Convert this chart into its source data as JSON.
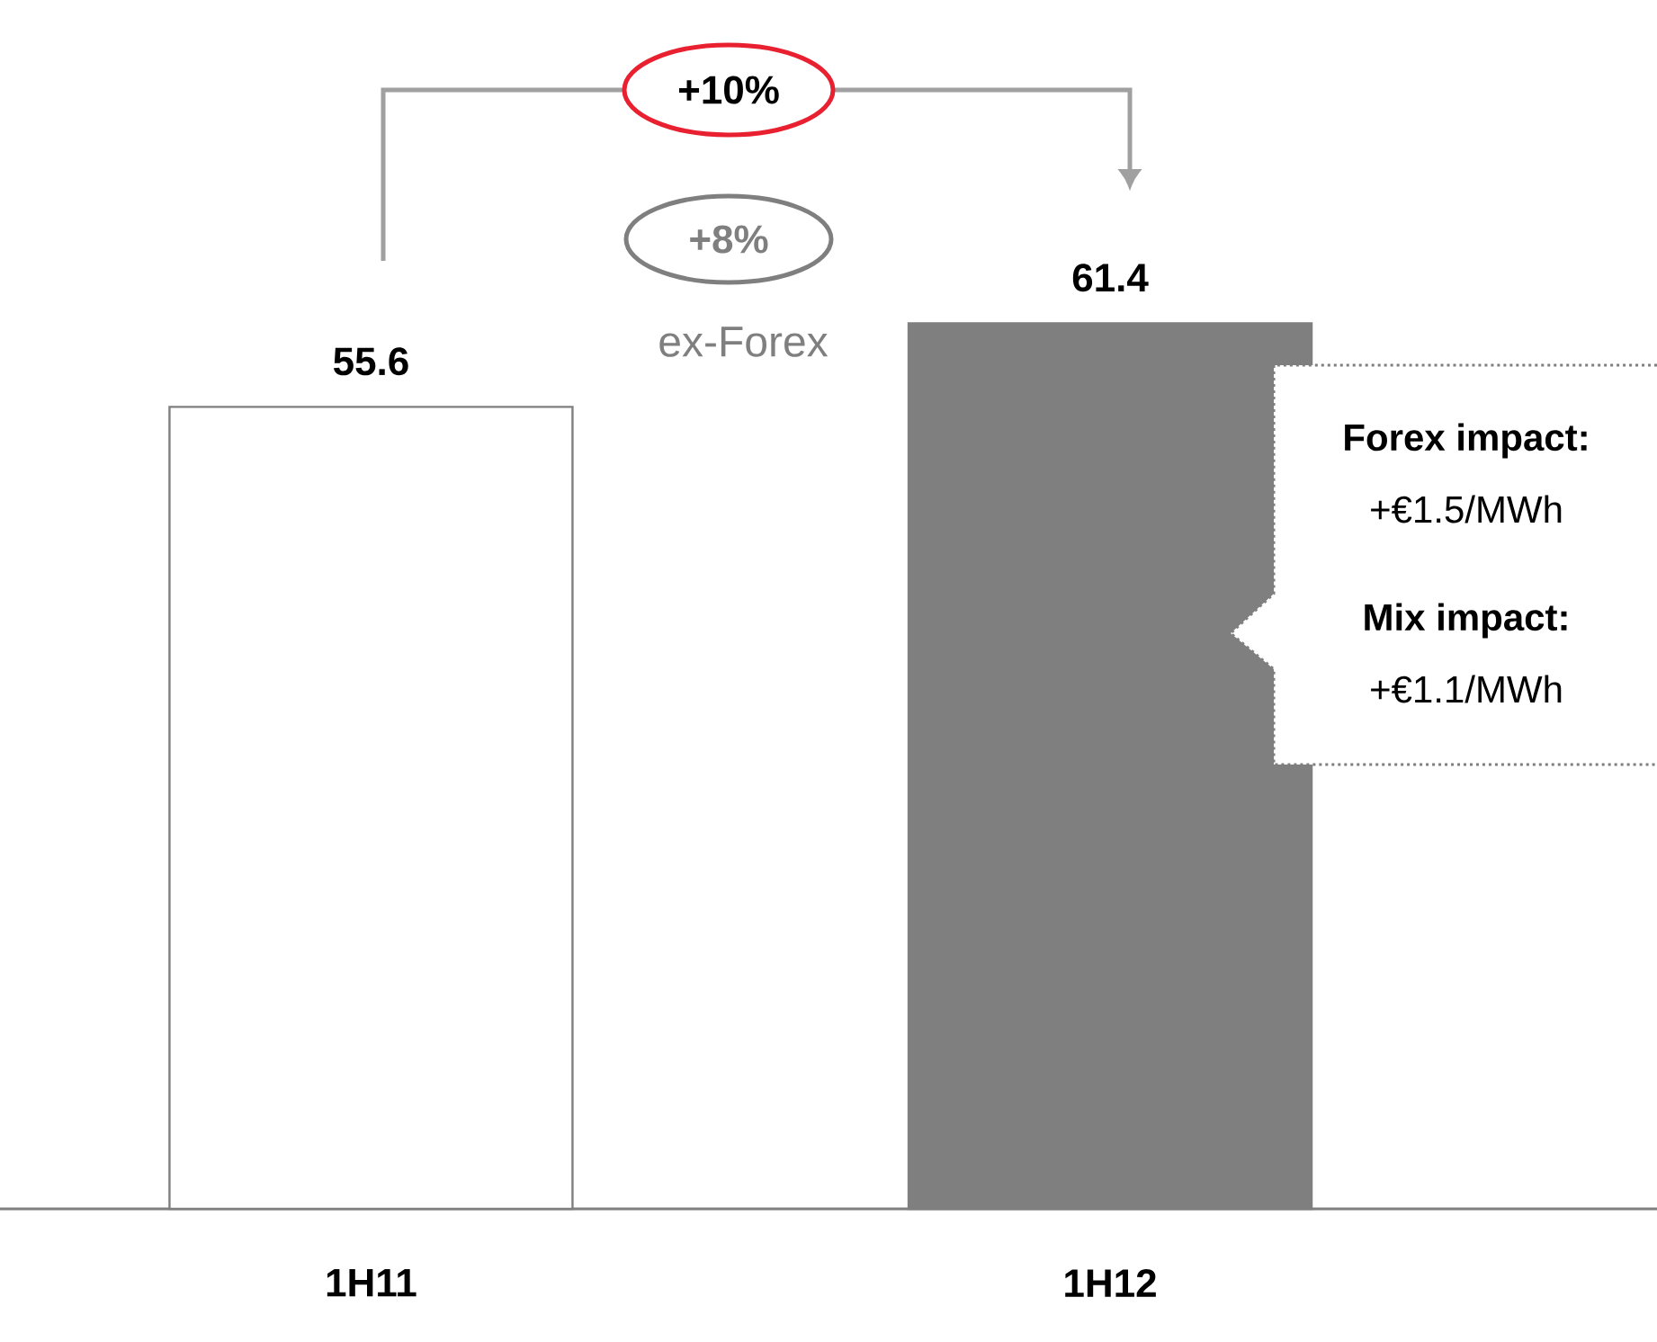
{
  "chart_data": {
    "type": "bar",
    "categories": [
      "1H11",
      "1H12"
    ],
    "values": [
      55.6,
      61.4
    ],
    "colors": [
      "#ffffff",
      "#7f7f7f"
    ],
    "data_labels": true,
    "annotations": [
      "+10%",
      "+8%",
      "ex-Forex",
      "Forex impact:",
      "+€1.5/MWh",
      "Mix impact:",
      "+€1.1/MWh"
    ]
  }
}
